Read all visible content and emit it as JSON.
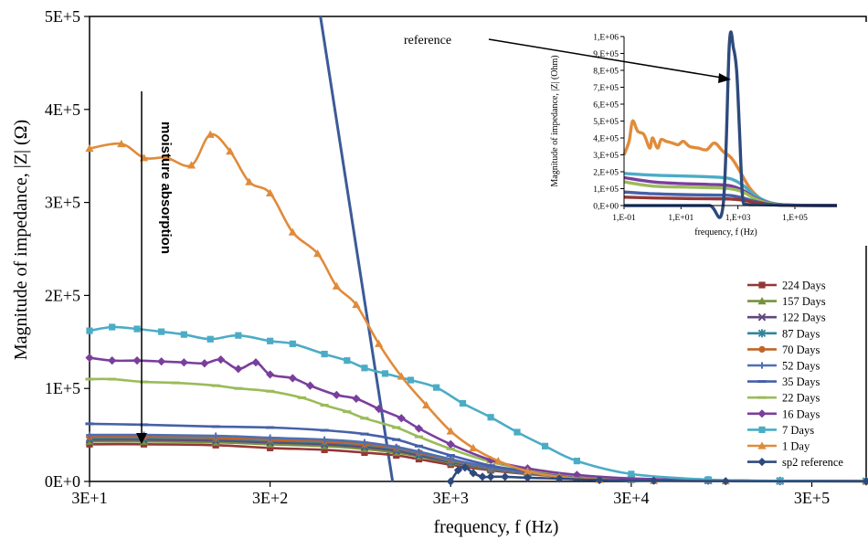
{
  "chart_data": [
    {
      "type": "line",
      "xlabel": "frequency, f (Hz)",
      "ylabel": "Magnitude of impedance, |Z| (Ω)",
      "x_scale": "log",
      "xlim": [
        30,
        600000
      ],
      "ylim": [
        0,
        500000
      ],
      "x_ticks": [
        {
          "value": 30,
          "label": "3E+1"
        },
        {
          "value": 300,
          "label": "3E+2"
        },
        {
          "value": 3000,
          "label": "3E+3"
        },
        {
          "value": 30000,
          "label": "3E+4"
        },
        {
          "value": 300000,
          "label": "3E+5"
        }
      ],
      "y_ticks": [
        {
          "value": 0,
          "label": "0E+0"
        },
        {
          "value": 100000,
          "label": "1E+5"
        },
        {
          "value": 200000,
          "label": "2E+5"
        },
        {
          "value": 300000,
          "label": "3E+5"
        },
        {
          "value": 400000,
          "label": "4E+5"
        },
        {
          "value": 500000,
          "label": "5E+5"
        }
      ],
      "grid": false,
      "legend_position": "right",
      "annotations": {
        "moisture": "moisture absorption",
        "reference": "reference"
      },
      "series": [
        {
          "name": "224 Days",
          "color": "#953735",
          "marker": "square",
          "x": [
            30,
            60,
            150,
            300,
            600,
            1000,
            1500,
            2000,
            3000,
            5000,
            8000,
            15000,
            30000,
            80000,
            200000,
            600000
          ],
          "y": [
            40000,
            40000,
            39000,
            36000,
            34000,
            31000,
            28000,
            24000,
            18000,
            12000,
            8000,
            4000,
            2000,
            1000,
            500,
            300
          ]
        },
        {
          "name": "157 Days",
          "color": "#76923c",
          "marker": "triangle",
          "x": [
            30,
            60,
            150,
            300,
            600,
            1000,
            1500,
            2000,
            3000,
            5000,
            8000,
            15000,
            30000,
            80000,
            200000,
            600000
          ],
          "y": [
            43000,
            43000,
            42000,
            40000,
            38000,
            35000,
            31000,
            27000,
            20000,
            13000,
            8500,
            4500,
            2200,
            1000,
            500,
            300
          ]
        },
        {
          "name": "122 Days",
          "color": "#5f4a7b",
          "marker": "x",
          "x": [
            30,
            60,
            150,
            300,
            600,
            1000,
            1500,
            2000,
            3000,
            5000,
            8000,
            15000,
            30000,
            80000,
            200000,
            600000
          ],
          "y": [
            45000,
            45000,
            44000,
            42000,
            40000,
            37000,
            33000,
            28000,
            21000,
            13500,
            9000,
            4700,
            2300,
            1100,
            500,
            300
          ]
        },
        {
          "name": "87 Days",
          "color": "#31859c",
          "marker": "star",
          "x": [
            30,
            60,
            150,
            300,
            600,
            1000,
            1500,
            2000,
            3000,
            5000,
            8000,
            15000,
            30000,
            80000,
            200000,
            600000
          ],
          "y": [
            47000,
            47000,
            46000,
            44000,
            42000,
            39000,
            35000,
            30000,
            22000,
            14000,
            9500,
            5000,
            2500,
            1100,
            500,
            300
          ]
        },
        {
          "name": "70 Days",
          "color": "#c0652a",
          "marker": "circle",
          "x": [
            30,
            60,
            150,
            300,
            600,
            1000,
            1500,
            2000,
            3000,
            5000,
            8000,
            15000,
            30000,
            80000,
            200000,
            600000
          ],
          "y": [
            48000,
            48000,
            47000,
            45000,
            43000,
            40000,
            36000,
            31000,
            23000,
            14500,
            9800,
            5100,
            2500,
            1100,
            500,
            300
          ]
        },
        {
          "name": "52 Days",
          "color": "#4f6fb3",
          "marker": "plus",
          "x": [
            30,
            60,
            150,
            300,
            600,
            1000,
            1500,
            2000,
            3000,
            5000,
            8000,
            15000,
            30000,
            80000,
            200000,
            600000
          ],
          "y": [
            50000,
            50000,
            49000,
            47000,
            45000,
            42000,
            37000,
            32000,
            24000,
            15000,
            10000,
            5200,
            2600,
            1200,
            500,
            300
          ]
        },
        {
          "name": "35 Days",
          "color": "#4660a8",
          "marker": "dash",
          "x": [
            30,
            60,
            150,
            300,
            600,
            1000,
            1500,
            2000,
            3000,
            5000,
            8000,
            15000,
            30000,
            80000,
            200000,
            600000
          ],
          "y": [
            62000,
            61000,
            59000,
            58000,
            55000,
            51000,
            45000,
            38000,
            28000,
            17000,
            11000,
            5800,
            2800,
            1200,
            500,
            300
          ]
        },
        {
          "name": "22 Days",
          "color": "#9bbb59",
          "marker": "dash",
          "x": [
            30,
            40,
            60,
            90,
            150,
            200,
            300,
            450,
            600,
            800,
            1000,
            1500,
            2000,
            3000,
            5000,
            8000,
            15000,
            30000,
            80000,
            200000,
            600000
          ],
          "y": [
            110000,
            110000,
            107000,
            106000,
            103000,
            100000,
            97000,
            90000,
            82000,
            75000,
            68000,
            58000,
            48000,
            35000,
            21000,
            13000,
            6500,
            3000,
            1200,
            500,
            300
          ]
        },
        {
          "name": "16 Days",
          "color": "#7a3f9c",
          "marker": "diamond",
          "x": [
            30,
            40,
            55,
            75,
            100,
            130,
            160,
            200,
            250,
            300,
            400,
            500,
            700,
            900,
            1200,
            1600,
            2000,
            3000,
            5000,
            8000,
            15000,
            30000,
            80000,
            200000,
            600000
          ],
          "y": [
            133000,
            130000,
            130000,
            129000,
            128000,
            127000,
            131000,
            121000,
            128000,
            115000,
            111000,
            103000,
            93000,
            89000,
            78000,
            68000,
            57000,
            40000,
            23000,
            14000,
            7000,
            3200,
            1300,
            500,
            300
          ]
        },
        {
          "name": "7 Days",
          "color": "#4bacc6",
          "marker": "square",
          "x": [
            30,
            40,
            55,
            75,
            100,
            140,
            200,
            300,
            400,
            600,
            800,
            1000,
            1300,
            1800,
            2500,
            3500,
            5000,
            7000,
            10000,
            15000,
            30000,
            80000,
            200000,
            600000
          ],
          "y": [
            162000,
            166000,
            164000,
            161000,
            158000,
            153000,
            157000,
            151000,
            148000,
            137000,
            130000,
            122000,
            116000,
            109000,
            101000,
            84000,
            69000,
            53000,
            38000,
            22000,
            8000,
            2000,
            700,
            300
          ]
        },
        {
          "name": "1 Day",
          "color": "#e08b3a",
          "marker": "triangle",
          "x": [
            30,
            45,
            60,
            80,
            110,
            140,
            180,
            230,
            300,
            400,
            550,
            700,
            900,
            1200,
            1600,
            2200,
            3000,
            4000,
            5500,
            8000,
            12000,
            20000,
            40000,
            100000,
            600000
          ],
          "y": [
            358000,
            363000,
            348000,
            348000,
            340000,
            373000,
            355000,
            322000,
            310000,
            268000,
            245000,
            210000,
            190000,
            148000,
            113000,
            82000,
            54000,
            36000,
            22000,
            11000,
            5000,
            2000,
            700,
            300,
            200
          ]
        },
        {
          "name": "sp2 reference",
          "color": "#2e4a7d",
          "marker": "diamond",
          "x": [
            3000,
            3300,
            3600,
            4000,
            4500,
            5000,
            6000,
            8000,
            12000,
            20000,
            40000,
            100000,
            600000
          ],
          "y": [
            0,
            12000,
            15000,
            9000,
            5000,
            5000,
            5000,
            4000,
            3000,
            1500,
            800,
            300,
            100
          ]
        }
      ],
      "reference_steep_line": {
        "color": "#3d5a98",
        "x": [
          570,
          1430
        ],
        "y": [
          500000,
          0
        ]
      }
    },
    {
      "type": "line",
      "role": "inset",
      "xlabel": "frequency, f (Hz)",
      "ylabel": "Magnitude of impedance, |Z| (Ohm)",
      "x_scale": "log",
      "xlim": [
        0.1,
        3000000
      ],
      "ylim": [
        0,
        1000000
      ],
      "x_ticks": [
        {
          "value": 0.1,
          "label": "1,E-01"
        },
        {
          "value": 10,
          "label": "1,E+01"
        },
        {
          "value": 1000,
          "label": "1,E+03"
        },
        {
          "value": 100000,
          "label": "1,E+05"
        }
      ],
      "y_ticks": [
        {
          "value": 0,
          "label": "0,E+00"
        },
        {
          "value": 100000,
          "label": "1,E+05"
        },
        {
          "value": 200000,
          "label": "2,E+05"
        },
        {
          "value": 300000,
          "label": "3,E+05"
        },
        {
          "value": 400000,
          "label": "4,E+05"
        },
        {
          "value": 500000,
          "label": "5,E+05"
        },
        {
          "value": 600000,
          "label": "6,E+05"
        },
        {
          "value": 700000,
          "label": "7,E+05"
        },
        {
          "value": 800000,
          "label": "8,E+05"
        },
        {
          "value": 900000,
          "label": "9,E+05"
        },
        {
          "value": 1000000,
          "label": "1,E+06"
        }
      ],
      "series": [
        {
          "color": "#e08b3a",
          "x": [
            0.1,
            0.15,
            0.2,
            0.3,
            0.5,
            0.8,
            1,
            1.5,
            2,
            3,
            5,
            8,
            12,
            20,
            40,
            80,
            150,
            300,
            600,
            1200,
            3000,
            10000,
            60000,
            3000000
          ],
          "y": [
            300000,
            380000,
            500000,
            440000,
            420000,
            340000,
            400000,
            340000,
            390000,
            380000,
            370000,
            360000,
            380000,
            350000,
            340000,
            330000,
            370000,
            320000,
            280000,
            200000,
            90000,
            20000,
            3000,
            0
          ]
        },
        {
          "color": "#4bacc6",
          "x": [
            0.1,
            1,
            10,
            100,
            500,
            1500,
            4000,
            15000,
            80000,
            3000000
          ],
          "y": [
            190000,
            180000,
            175000,
            170000,
            160000,
            120000,
            60000,
            15000,
            2000,
            0
          ]
        },
        {
          "color": "#7a3f9c",
          "x": [
            0.1,
            1,
            10,
            100,
            500,
            1500,
            4000,
            15000,
            80000,
            3000000
          ],
          "y": [
            165000,
            140000,
            130000,
            125000,
            118000,
            90000,
            45000,
            12000,
            1500,
            0
          ]
        },
        {
          "color": "#9bbb59",
          "x": [
            0.1,
            1,
            10,
            100,
            500,
            1500,
            4000,
            15000,
            80000,
            3000000
          ],
          "y": [
            140000,
            115000,
            110000,
            106000,
            100000,
            80000,
            40000,
            10000,
            1500,
            0
          ]
        },
        {
          "color": "#4660a8",
          "x": [
            0.1,
            1,
            10,
            100,
            500,
            1500,
            4000,
            15000,
            80000,
            3000000
          ],
          "y": [
            80000,
            70000,
            65000,
            62000,
            60000,
            45000,
            25000,
            6000,
            1000,
            0
          ]
        },
        {
          "color": "#953735",
          "x": [
            0.1,
            1,
            10,
            100,
            500,
            1500,
            4000,
            15000,
            80000,
            3000000
          ],
          "y": [
            50000,
            45000,
            42000,
            40000,
            39000,
            32000,
            18000,
            5000,
            800,
            0
          ]
        },
        {
          "color": "#2e4a7d",
          "x": [
            0.1,
            1,
            10,
            100,
            300,
            500,
            700,
            900,
            1100,
            1300,
            1500,
            2000,
            5000,
            100000,
            3000000
          ],
          "y": [
            0,
            0,
            0,
            0,
            0,
            960000,
            930000,
            800000,
            500000,
            200000,
            30000,
            8000,
            5000,
            2000,
            0
          ]
        }
      ]
    }
  ]
}
